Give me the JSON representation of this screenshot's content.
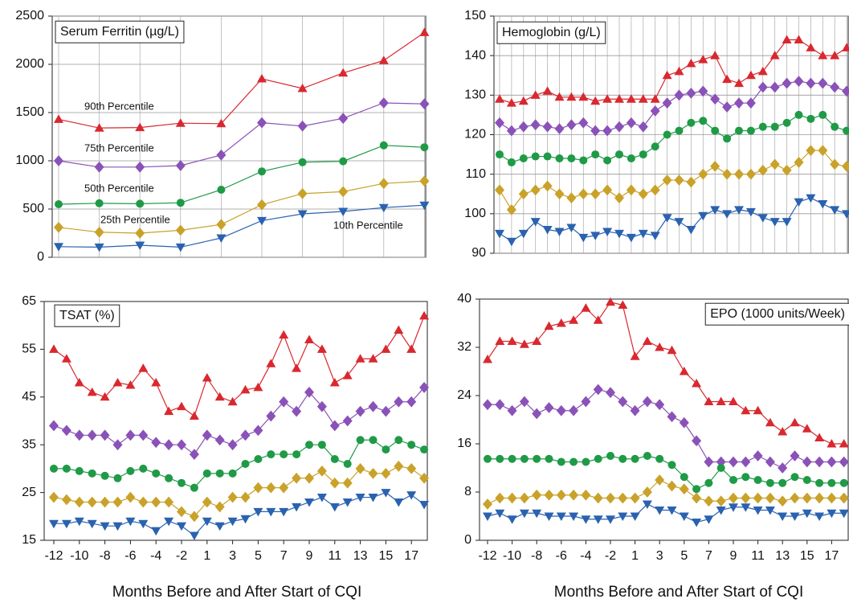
{
  "chart_data": [
    {
      "type": "line",
      "title": "Serum Ferritin (µg/L)",
      "grid": true,
      "categories": [
        null,
        null,
        null,
        null,
        null,
        null,
        null,
        null,
        null,
        null
      ],
      "ylim": [
        0,
        2500
      ],
      "yticks": [
        0,
        500,
        1000,
        1500,
        2000,
        2500
      ],
      "series": [
        {
          "name": "90th Percentile",
          "color": "#d9282f",
          "marker": "triangle-up",
          "values": [
            1430,
            1340,
            1345,
            1390,
            1385,
            1850,
            1750,
            1910,
            2040,
            2330
          ]
        },
        {
          "name": "75th Percentile",
          "color": "#8a52b8",
          "marker": "diamond",
          "values": [
            1000,
            935,
            935,
            950,
            1060,
            1395,
            1360,
            1440,
            1600,
            1590
          ]
        },
        {
          "name": "50th Percentile",
          "color": "#1f9a47",
          "marker": "circle",
          "values": [
            550,
            560,
            555,
            565,
            700,
            890,
            985,
            995,
            1160,
            1140
          ]
        },
        {
          "name": "25th Percentile",
          "color": "#c9a22a",
          "marker": "diamond",
          "values": [
            310,
            260,
            250,
            280,
            340,
            545,
            660,
            680,
            765,
            790
          ]
        },
        {
          "name": "10th Percentile",
          "color": "#2a62b0",
          "marker": "triangle-down",
          "values": [
            110,
            105,
            125,
            105,
            200,
            380,
            450,
            475,
            515,
            540
          ]
        }
      ]
    },
    {
      "type": "line",
      "title": "Hemoglobin (g/L)",
      "grid": true,
      "categories": [
        null,
        null,
        null,
        null,
        null,
        null,
        null,
        null,
        null,
        null,
        null,
        null,
        null,
        null,
        null,
        null,
        null,
        null,
        null,
        null,
        null,
        null,
        null,
        null,
        null,
        null,
        null,
        null,
        null,
        null
      ],
      "ylim": [
        90,
        150
      ],
      "yticks": [
        90,
        100,
        110,
        120,
        130,
        140,
        150
      ],
      "series": [
        {
          "color": "#d9282f",
          "marker": "triangle-up",
          "values": [
            129,
            128,
            128.5,
            130,
            131,
            129.5,
            129.5,
            129.5,
            128.5,
            129,
            129,
            129,
            129,
            129,
            135,
            136,
            138,
            139,
            140,
            134,
            133,
            135,
            136,
            140,
            144,
            144,
            142,
            140,
            140,
            142
          ]
        },
        {
          "color": "#8a52b8",
          "marker": "diamond",
          "values": [
            123,
            121,
            122,
            122.5,
            122,
            121.5,
            122.5,
            123,
            121,
            121,
            122,
            123,
            122,
            126,
            128,
            130,
            130.5,
            131,
            129,
            127,
            128,
            128,
            132,
            132,
            133,
            133.5,
            133,
            133,
            132,
            131
          ]
        },
        {
          "color": "#1f9a47",
          "marker": "circle",
          "values": [
            115,
            113,
            114,
            114.5,
            114.5,
            114,
            114,
            113.5,
            115,
            113.5,
            115,
            114,
            115,
            117,
            120,
            121,
            123,
            123.5,
            121,
            119,
            121,
            121,
            122,
            122,
            123,
            125,
            124,
            125,
            122,
            121
          ]
        },
        {
          "color": "#c9a22a",
          "marker": "diamond",
          "values": [
            106,
            101,
            105,
            106,
            107,
            105,
            104,
            105,
            105,
            106,
            104,
            106,
            105,
            106,
            108.5,
            108.5,
            108,
            110,
            112,
            110,
            110,
            110,
            111,
            112.5,
            111,
            113,
            116,
            116,
            112.5,
            112
          ]
        },
        {
          "color": "#2a62b0",
          "marker": "triangle-down",
          "values": [
            95,
            93,
            95,
            98,
            96,
            95.5,
            96.5,
            94,
            94.5,
            95.5,
            95,
            94,
            95,
            94.5,
            99,
            98,
            96,
            99.5,
            101,
            100,
            101,
            100.5,
            99,
            98,
            98,
            103,
            104,
            102.5,
            101,
            100
          ]
        }
      ]
    },
    {
      "type": "line",
      "title": "TSAT (%)",
      "grid": false,
      "xlabel": "Months Before and After Start of CQI",
      "categories": [
        "-12",
        null,
        "-10",
        null,
        "-8",
        null,
        "-6",
        null,
        "-4",
        null,
        "-2",
        null,
        "1",
        null,
        "3",
        null,
        "5",
        null,
        "7",
        null,
        "9",
        null,
        "11",
        null,
        "13",
        null,
        "15",
        null,
        "17",
        null
      ],
      "ylim": [
        15,
        65
      ],
      "yticks": [
        15,
        25,
        35,
        45,
        55,
        65
      ],
      "series": [
        {
          "color": "#d9282f",
          "marker": "triangle-up",
          "values": [
            55,
            53,
            48,
            46,
            45,
            48,
            47.5,
            51,
            48,
            42,
            43,
            41,
            49,
            45,
            44,
            46.5,
            47,
            52,
            58,
            51,
            57,
            55,
            48,
            49.5,
            53,
            53,
            55,
            59,
            55,
            62
          ]
        },
        {
          "color": "#8a52b8",
          "marker": "diamond",
          "values": [
            39,
            38,
            37,
            37,
            37,
            35,
            37,
            37,
            35.5,
            35,
            35,
            33,
            37,
            36,
            35,
            37,
            38,
            41,
            44,
            42,
            46,
            43,
            39,
            40,
            42,
            43,
            42,
            44,
            44,
            47
          ]
        },
        {
          "color": "#1f9a47",
          "marker": "circle",
          "values": [
            30,
            30,
            29.5,
            29,
            28.5,
            28,
            29.5,
            30,
            29,
            28,
            27,
            26,
            29,
            29,
            29,
            31,
            32,
            33,
            33,
            33,
            35,
            35,
            32,
            31,
            36,
            36,
            34,
            36,
            35,
            34
          ]
        },
        {
          "color": "#c9a22a",
          "marker": "diamond",
          "values": [
            24,
            23.5,
            23,
            23,
            23,
            23,
            24,
            23,
            23,
            23,
            21,
            20,
            23,
            22,
            24,
            24,
            26,
            26,
            26,
            28,
            28,
            29.5,
            27,
            27,
            30,
            29,
            29,
            30.5,
            30,
            28
          ]
        },
        {
          "color": "#2a62b0",
          "marker": "triangle-down",
          "values": [
            18.5,
            18.5,
            19,
            18.5,
            18,
            18,
            19,
            18.5,
            17,
            19,
            18,
            16,
            19,
            18,
            19,
            19.5,
            21,
            21,
            21,
            22,
            23,
            24,
            22,
            23,
            24,
            24,
            25,
            23,
            24.5,
            22.5
          ]
        }
      ]
    },
    {
      "type": "line",
      "title": "EPO (1000 units/Week)",
      "grid": false,
      "xlabel": "Months Before and After Start of CQI",
      "categories": [
        "-12",
        null,
        "-10",
        null,
        "-8",
        null,
        "-6",
        null,
        "-4",
        null,
        "-2",
        null,
        "1",
        null,
        "3",
        null,
        "5",
        null,
        "7",
        null,
        "9",
        null,
        "11",
        null,
        "13",
        null,
        "15",
        null,
        "17",
        null
      ],
      "ylim": [
        0,
        40
      ],
      "yticks": [
        0,
        8,
        16,
        24,
        32,
        40
      ],
      "series": [
        {
          "color": "#d9282f",
          "marker": "triangle-up",
          "values": [
            30,
            33,
            33,
            32.5,
            33,
            35.5,
            36,
            36.5,
            38.5,
            36.5,
            39.5,
            39,
            30.5,
            33,
            32,
            31.5,
            28,
            26,
            23,
            23,
            23,
            21.5,
            21.5,
            19.5,
            18,
            19.5,
            18.5,
            17,
            16,
            16
          ]
        },
        {
          "color": "#8a52b8",
          "marker": "diamond",
          "values": [
            22.5,
            22.5,
            21.5,
            23,
            21,
            22,
            21.5,
            21.5,
            23,
            25,
            24.5,
            23,
            21.5,
            23,
            22.5,
            20.5,
            19.5,
            16.5,
            13,
            13,
            13,
            13,
            14,
            13,
            12,
            14,
            13,
            13,
            13,
            13
          ]
        },
        {
          "color": "#1f9a47",
          "marker": "circle",
          "values": [
            13.5,
            13.5,
            13.5,
            13.5,
            13.5,
            13.5,
            13,
            13,
            13,
            13.5,
            14,
            13.5,
            13.5,
            14,
            13.5,
            12.5,
            10.5,
            8.5,
            9.5,
            12,
            10,
            10.5,
            10,
            9.5,
            9.5,
            10.5,
            10,
            9.5,
            9.5,
            9.5
          ]
        },
        {
          "color": "#c9a22a",
          "marker": "diamond",
          "values": [
            6,
            7,
            7,
            7,
            7.5,
            7.5,
            7.5,
            7.5,
            7.5,
            7,
            7,
            7,
            7,
            8,
            10,
            9,
            8.5,
            7,
            6.5,
            6.5,
            7,
            7,
            7,
            7,
            6.5,
            7,
            7,
            7,
            7,
            7
          ]
        },
        {
          "color": "#2a62b0",
          "marker": "triangle-down",
          "values": [
            4,
            4.5,
            3.5,
            4.5,
            4.5,
            4,
            4,
            4,
            3.5,
            3.5,
            3.5,
            4,
            4,
            6,
            5,
            5,
            4,
            3,
            3.5,
            5,
            5.5,
            5.5,
            5,
            5,
            4,
            4,
            4.5,
            4,
            4.5,
            4.5
          ]
        }
      ]
    }
  ]
}
